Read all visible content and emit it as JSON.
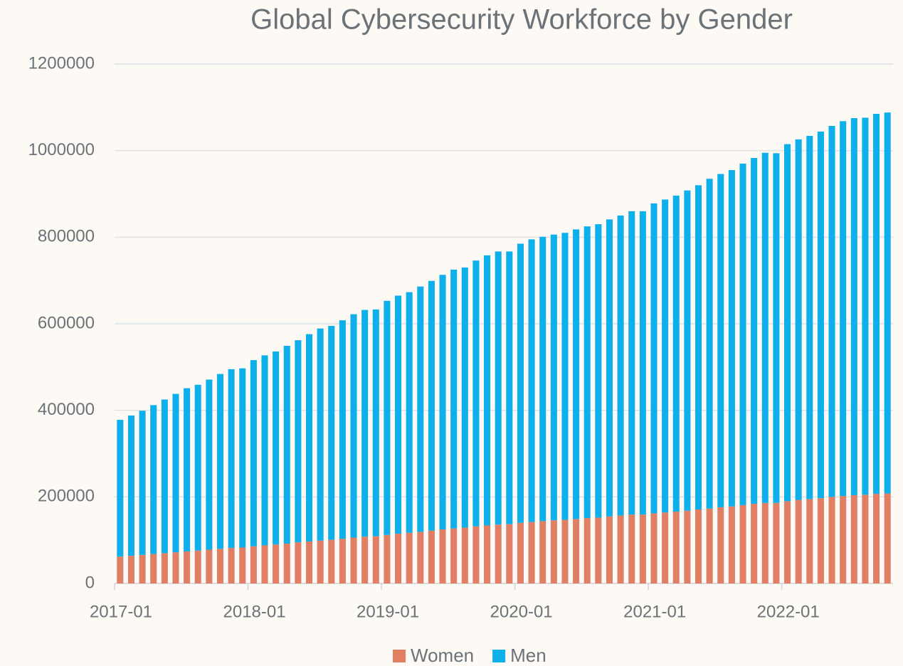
{
  "chart_data": {
    "type": "stacked_bar",
    "title": "Global Cybersecurity Workforce by Gender",
    "categories": [
      "2017-01",
      null,
      null,
      null,
      null,
      null,
      null,
      null,
      null,
      null,
      null,
      null,
      "2018-01",
      null,
      null,
      null,
      null,
      null,
      null,
      null,
      null,
      null,
      null,
      null,
      "2019-01",
      null,
      null,
      null,
      null,
      null,
      null,
      null,
      null,
      null,
      null,
      null,
      "2020-01",
      null,
      null,
      null,
      null,
      null,
      null,
      null,
      null,
      null,
      null,
      null,
      "2021-01",
      null,
      null,
      null,
      null,
      null,
      null,
      null,
      null,
      null,
      null,
      null,
      "2022-01",
      null,
      null,
      null,
      null,
      null,
      null,
      null,
      null,
      null
    ],
    "series": [
      {
        "name": "Women",
        "color": "#e07f63",
        "values": [
          62000,
          64000,
          66000,
          68000,
          70000,
          72000,
          74000,
          76000,
          78000,
          80000,
          82000,
          83000,
          86000,
          88000,
          90000,
          92000,
          95000,
          97000,
          99000,
          101000,
          103000,
          106000,
          108000,
          109000,
          112000,
          115000,
          117000,
          119000,
          122000,
          125000,
          127000,
          129000,
          132000,
          134000,
          136000,
          137000,
          140000,
          142000,
          144000,
          146000,
          147000,
          149000,
          151000,
          152000,
          155000,
          157000,
          159000,
          159000,
          162000,
          164000,
          166000,
          168000,
          171000,
          173000,
          176000,
          178000,
          181000,
          184000,
          186000,
          186000,
          190000,
          193000,
          195000,
          197000,
          200000,
          202000,
          204000,
          205000,
          207000,
          208000
        ]
      },
      {
        "name": "Men",
        "color": "#0db0ea",
        "values": [
          316000,
          324000,
          333000,
          344000,
          355000,
          366000,
          377000,
          383000,
          393000,
          404000,
          413000,
          414000,
          430000,
          439000,
          446000,
          457000,
          467000,
          479000,
          490000,
          494000,
          505000,
          516000,
          524000,
          524000,
          541000,
          550000,
          556000,
          567000,
          577000,
          588000,
          598000,
          601000,
          614000,
          624000,
          631000,
          630000,
          645000,
          653000,
          657000,
          660000,
          663000,
          669000,
          674000,
          678000,
          686000,
          693000,
          701000,
          701000,
          716000,
          723000,
          730000,
          740000,
          749000,
          762000,
          770000,
          777000,
          789000,
          799000,
          809000,
          808000,
          825000,
          833000,
          839000,
          847000,
          857000,
          866000,
          871000,
          871000,
          878000,
          880000
        ]
      }
    ],
    "ylim": [
      0,
      1200000
    ],
    "yticks": [
      0,
      200000,
      400000,
      600000,
      800000,
      1000000,
      1200000
    ],
    "grid": true,
    "legend": "bottom"
  }
}
